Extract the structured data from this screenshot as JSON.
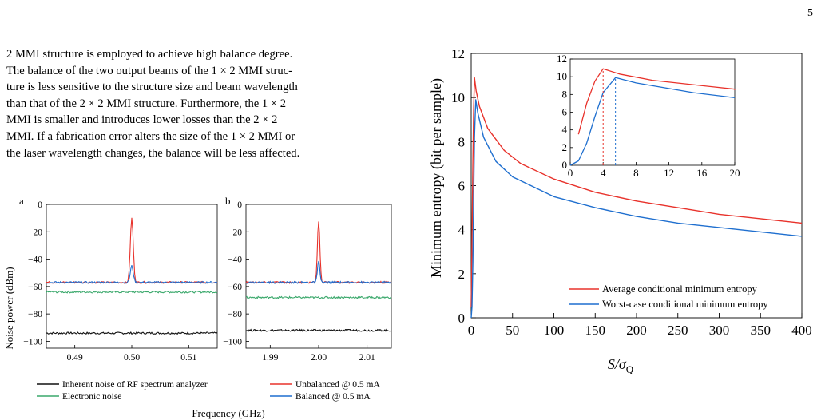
{
  "page_number": "5",
  "paragraph": [
    "2 MMI structure is employed to achieve high balance degree.",
    "The balance of the two output beams of the 1 × 2 MMI struc-",
    "ture is less sensitive to the structure size and beam wavelength",
    "than that of the 2 × 2 MMI structure. Furthermore, the 1 × 2",
    "MMI is smaller and introduces lower losses than the 2 × 2",
    "MMI. If a fabrication error alters the size of the 1 × 2 MMI or",
    "the laser wavelength changes, the balance will be less affected."
  ],
  "colors": {
    "red": "#e8322b",
    "blue": "#1f6fcf",
    "green": "#3aa86b",
    "black": "#111111"
  },
  "chart_data": [
    {
      "type": "line",
      "panel_label": "a",
      "ylabel": "Noise power (dBm)",
      "xlabel": "Frequency (GHz)",
      "xlim": [
        0.485,
        0.515
      ],
      "ylim": [
        -105,
        0
      ],
      "x_ticks": [
        "0.49",
        "0.50",
        "0.51"
      ],
      "y_ticks": [
        "0",
        "−20",
        "−40",
        "−60",
        "−80",
        "−100"
      ],
      "series": [
        {
          "name": "Inherent noise of RF spectrum analyzer",
          "baseline": -94,
          "peak": null,
          "color": "black"
        },
        {
          "name": "Electronic noise",
          "baseline": -64,
          "peak": null,
          "color": "green"
        },
        {
          "name": "Unbalanced @ 0.5 mA",
          "baseline": -57,
          "peak": {
            "x": 0.5,
            "y": -10
          },
          "color": "red"
        },
        {
          "name": "Balanced @ 0.5 mA",
          "baseline": -57,
          "peak": {
            "x": 0.5,
            "y": -45
          },
          "color": "blue"
        }
      ]
    },
    {
      "type": "line",
      "panel_label": "b",
      "xlim": [
        1.985,
        2.015
      ],
      "ylim": [
        -105,
        0
      ],
      "x_ticks": [
        "1.99",
        "2.00",
        "2.01"
      ],
      "y_ticks": [
        "0",
        "−20",
        "−40",
        "−60",
        "−80",
        "−100"
      ],
      "series": [
        {
          "name": "Inherent noise of RF spectrum analyzer",
          "baseline": -92,
          "peak": null,
          "color": "black"
        },
        {
          "name": "Electronic noise",
          "baseline": -68,
          "peak": null,
          "color": "green"
        },
        {
          "name": "Unbalanced @ 0.5 mA",
          "baseline": -57,
          "peak": {
            "x": 2.0,
            "y": -12
          },
          "color": "red"
        },
        {
          "name": "Balanced @ 0.5 mA",
          "baseline": -57,
          "peak": {
            "x": 2.0,
            "y": -42
          },
          "color": "blue"
        }
      ]
    },
    {
      "type": "line",
      "xlabel_main": "S/σ",
      "xlabel_sub": "Q",
      "ylabel": "Minimum entropy (bit per sample)",
      "xlim": [
        0,
        400
      ],
      "ylim": [
        0,
        12
      ],
      "x_ticks": [
        "0",
        "50",
        "100",
        "150",
        "200",
        "250",
        "300",
        "350",
        "400"
      ],
      "y_ticks": [
        "0",
        "2",
        "4",
        "6",
        "8",
        "10",
        "12"
      ],
      "series": [
        {
          "name": "Average conditional minimum entropy",
          "color": "red",
          "x": [
            0,
            1,
            2,
            3,
            4,
            6,
            10,
            20,
            40,
            60,
            100,
            150,
            200,
            250,
            300,
            350,
            400
          ],
          "y": [
            0.5,
            3.5,
            7.0,
            9.5,
            10.9,
            10.3,
            9.6,
            8.6,
            7.6,
            7.0,
            6.3,
            5.7,
            5.3,
            5.0,
            4.7,
            4.5,
            4.3
          ]
        },
        {
          "name": "Worst-case conditional minimum entropy",
          "color": "blue",
          "x": [
            0,
            1,
            2,
            3,
            4,
            5.5,
            8,
            15,
            30,
            50,
            100,
            150,
            200,
            250,
            300,
            350,
            400
          ],
          "y": [
            0,
            0.5,
            2.5,
            5.5,
            8.2,
            9.9,
            9.3,
            8.2,
            7.1,
            6.4,
            5.5,
            5.0,
            4.6,
            4.3,
            4.1,
            3.9,
            3.7
          ]
        }
      ],
      "legend_position": "bottom-right",
      "inset": {
        "xlim": [
          0,
          20
        ],
        "ylim": [
          0,
          12
        ],
        "x_ticks": [
          "0",
          "4",
          "8",
          "12",
          "16",
          "20"
        ],
        "y_ticks": [
          "0",
          "2",
          "4",
          "6",
          "8",
          "10",
          "12"
        ],
        "markers": [
          {
            "x": 4,
            "color": "red"
          },
          {
            "x": 5.5,
            "color": "blue"
          }
        ]
      }
    }
  ]
}
